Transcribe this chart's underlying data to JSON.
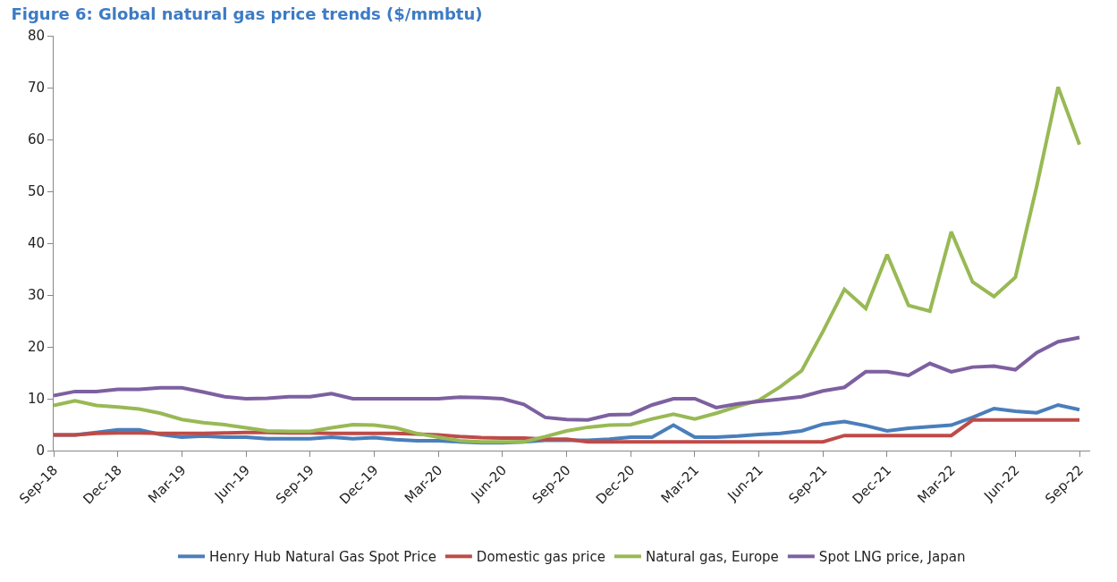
{
  "chart_data": {
    "type": "line",
    "title": "Figure 6: Global natural gas price trends ($/mmbtu)",
    "categories": [
      "Sep-18",
      null,
      null,
      "Dec-18",
      null,
      null,
      "Mar-19",
      null,
      null,
      "Jun-19",
      null,
      null,
      "Sep-19",
      null,
      null,
      "Dec-19",
      null,
      null,
      "Mar-20",
      null,
      null,
      "Jun-20",
      null,
      null,
      "Sep-20",
      null,
      null,
      "Dec-20",
      null,
      null,
      "Mar-21",
      null,
      null,
      "Jun-21",
      null,
      null,
      "Sep-21",
      null,
      null,
      "Dec-21",
      null,
      null,
      "Mar-22",
      null,
      null,
      "Jun-22",
      null,
      null,
      "Sep-22"
    ],
    "series": [
      {
        "name": "Henry Hub Natural Gas Spot Price",
        "color": "#4a7ebb",
        "values": [
          3.0,
          3.0,
          3.5,
          4.0,
          4.0,
          3.1,
          2.6,
          2.8,
          2.6,
          2.6,
          2.3,
          2.3,
          2.3,
          2.6,
          2.3,
          2.5,
          2.1,
          1.9,
          1.9,
          1.7,
          1.5,
          1.5,
          1.7,
          2.0,
          2.0,
          2.0,
          2.2,
          2.6,
          2.6,
          4.9,
          2.6,
          2.6,
          2.8,
          3.1,
          3.3,
          3.8,
          5.1,
          5.6,
          4.8,
          3.8,
          4.3,
          4.6,
          4.9,
          6.4,
          8.1,
          7.6,
          7.3,
          8.8,
          7.9
        ]
      },
      {
        "name": "Domestic gas price",
        "color": "#be4b48",
        "values": [
          3.0,
          3.0,
          3.3,
          3.4,
          3.4,
          3.3,
          3.3,
          3.3,
          3.4,
          3.5,
          3.5,
          3.4,
          3.4,
          3.3,
          3.3,
          3.3,
          3.3,
          3.2,
          3.0,
          2.7,
          2.5,
          2.4,
          2.4,
          2.2,
          2.2,
          1.7,
          1.7,
          1.7,
          1.7,
          1.7,
          1.7,
          1.7,
          1.7,
          1.7,
          1.7,
          1.7,
          1.7,
          2.9,
          2.9,
          2.9,
          2.9,
          2.9,
          2.9,
          5.9,
          5.9,
          5.9,
          5.9,
          5.9,
          5.9
        ]
      },
      {
        "name": "Natural gas, Europe",
        "color": "#98b954",
        "values": [
          8.7,
          9.6,
          8.7,
          8.4,
          8.0,
          7.2,
          6.0,
          5.4,
          5.0,
          4.4,
          3.8,
          3.7,
          3.7,
          4.4,
          5.0,
          4.9,
          4.4,
          3.3,
          2.6,
          1.9,
          1.7,
          1.7,
          1.7,
          2.7,
          3.8,
          4.5,
          4.9,
          5.0,
          6.1,
          7.0,
          6.1,
          7.2,
          8.5,
          9.7,
          12.3,
          15.4,
          23.0,
          31.1,
          27.4,
          37.8,
          28.0,
          26.9,
          42.2,
          32.5,
          29.7,
          33.4,
          51.0,
          70.1,
          59.0
        ]
      },
      {
        "name": "Spot LNG price, Japan",
        "color": "#7d60a0",
        "values": [
          10.6,
          11.4,
          11.4,
          11.8,
          11.8,
          12.1,
          12.1,
          11.3,
          10.4,
          10.0,
          10.1,
          10.4,
          10.4,
          11.0,
          10.0,
          10.0,
          10.0,
          10.0,
          10.0,
          10.3,
          10.2,
          10.0,
          8.9,
          6.4,
          6.0,
          5.9,
          6.9,
          7.0,
          8.8,
          10.0,
          10.0,
          8.3,
          9.0,
          9.5,
          9.9,
          10.4,
          11.5,
          12.2,
          15.2,
          15.2,
          14.5,
          16.8,
          15.2,
          16.1,
          16.3,
          15.6,
          18.9,
          21.0,
          21.8
        ]
      }
    ],
    "ylim": [
      0,
      80
    ],
    "yticks": [
      0,
      10,
      20,
      30,
      40,
      50,
      60,
      70,
      80
    ],
    "legend": "bottom",
    "line_style": "solid",
    "marker": "none"
  }
}
